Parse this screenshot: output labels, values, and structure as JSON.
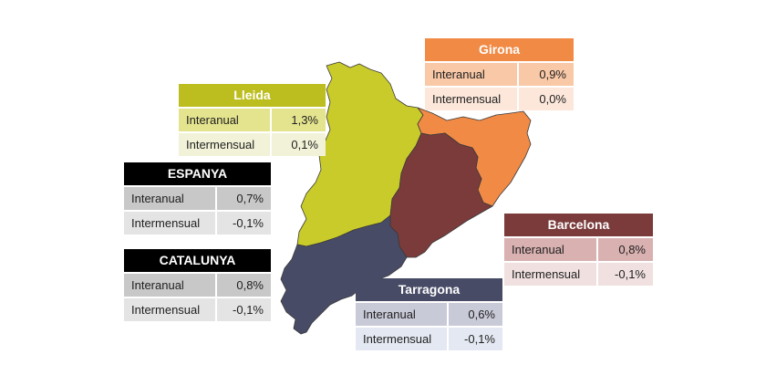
{
  "colors": {
    "lleida": "#c9cb2a",
    "girona": "#f18a45",
    "barcelona": "#7b3b3b",
    "tarragona": "#474b66",
    "espanya": "#000000",
    "catalunya": "#000000"
  },
  "regions": {
    "lleida": {
      "name": "Lleida",
      "rows": [
        {
          "label": "Interanual",
          "value": "1,3%"
        },
        {
          "label": "Intermensual",
          "value": "0,1%"
        }
      ]
    },
    "girona": {
      "name": "Girona",
      "rows": [
        {
          "label": "Interanual",
          "value": "0,9%"
        },
        {
          "label": "Intermensual",
          "value": "0,0%"
        }
      ]
    },
    "barcelona": {
      "name": "Barcelona",
      "rows": [
        {
          "label": "Interanual",
          "value": "0,8%"
        },
        {
          "label": "Intermensual",
          "value": "-0,1%"
        }
      ]
    },
    "tarragona": {
      "name": "Tarragona",
      "rows": [
        {
          "label": "Interanual",
          "value": "0,6%"
        },
        {
          "label": "Intermensual",
          "value": "-0,1%"
        }
      ]
    }
  },
  "totals": {
    "espanya": {
      "name": "ESPANYA",
      "rows": [
        {
          "label": "Interanual",
          "value": "0,7%"
        },
        {
          "label": "Intermensual",
          "value": "-0,1%"
        }
      ]
    },
    "catalunya": {
      "name": "CATALUNYA",
      "rows": [
        {
          "label": "Interanual",
          "value": "0,8%"
        },
        {
          "label": "Intermensual",
          "value": "-0,1%"
        }
      ]
    }
  }
}
